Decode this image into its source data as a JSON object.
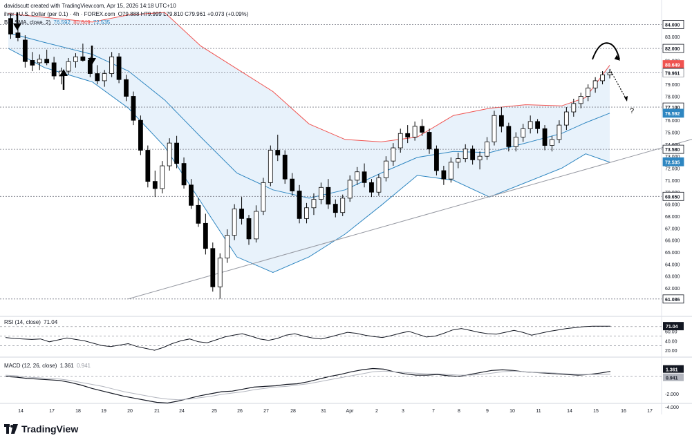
{
  "header": {
    "attribution": "davidscutt created with TradingView.com, Apr 15, 2026 14:18 UTC+10",
    "symbol": "ilver / U.S. Dollar (per 0.1) · 4h · FOREX.com",
    "ohlc": "O79.888 H79.999 L79.810 C79.961 +0.073 (+0.09%)",
    "bb_label": "BB, SMA, close, 2)",
    "bb_values": [
      "76.592",
      "80.649",
      "72.535"
    ],
    "rsi_label": "RSI (14, close)",
    "rsi_value": "71.04",
    "macd_label": "MACD (12, 26, close)",
    "macd_values": [
      "1.361",
      "0.941"
    ]
  },
  "logo": {
    "text": "TradingView",
    "icon": "tradingview-logo-icon"
  },
  "annotation": {
    "question": "?"
  },
  "colors": {
    "bullish": "#ffffff",
    "bearish": "#000000",
    "bb_upper": "#f05350",
    "bb_basis": "#2e86c1",
    "bb_fill": "#e8f2fb",
    "macd": "#131722",
    "signal": "#b2b5be",
    "level_line": "#787b86"
  },
  "chart_data": [
    {
      "type": "candlestick",
      "title": "",
      "x_tick_labels": [
        "14",
        "17",
        "18",
        "19",
        "20",
        "21",
        "24",
        "25",
        "26",
        "27",
        "28",
        "31",
        "Apr",
        "2",
        "3",
        "7",
        "8",
        "9",
        "10",
        "11",
        "14",
        "15",
        "16",
        "17"
      ],
      "y_ticks": [
        "83.000",
        "81.000",
        "79.000",
        "78.000",
        "77.000",
        "76.000",
        "75.000",
        "74.000",
        "73.000",
        "72.000",
        "71.000",
        "70.000",
        "69.000",
        "68.000",
        "67.000",
        "66.000",
        "65.000",
        "64.000",
        "63.000",
        "62.000"
      ],
      "ylim": [
        60.5,
        84.6
      ],
      "price_labels": [
        {
          "value": 84.0,
          "text": "84.000",
          "style": "level"
        },
        {
          "value": 82.0,
          "text": "82.000",
          "style": "level"
        },
        {
          "value": 80.649,
          "text": "80.649",
          "style": "upper"
        },
        {
          "value": 80.0,
          "text": "80.000",
          "style": "level"
        },
        {
          "value": 79.961,
          "text": "79.961",
          "style": "price"
        },
        {
          "value": 77.1,
          "text": "77.100",
          "style": "level"
        },
        {
          "value": 76.592,
          "text": "76.592",
          "style": "basis"
        },
        {
          "value": 73.58,
          "text": "73.580",
          "style": "level"
        },
        {
          "value": 72.535,
          "text": "72.535",
          "style": "lower"
        },
        {
          "value": 69.65,
          "text": "69.650",
          "style": "level"
        },
        {
          "value": 61.086,
          "text": "61.086",
          "style": "level"
        }
      ],
      "horizontal_levels": [
        84.0,
        82.0,
        80.0,
        77.1,
        73.58,
        69.65,
        61.086
      ],
      "trendline": {
        "from": [
          1,
          61.1
        ],
        "to": [
          6.1,
          75.6
        ]
      },
      "candles": [
        [
          0.02,
          84.5,
          84.9,
          82.8,
          83.2
        ],
        [
          0.08,
          83.3,
          84.2,
          82.6,
          82.9
        ],
        [
          0.14,
          82.7,
          83.1,
          80.4,
          80.9
        ],
        [
          0.2,
          81.0,
          81.7,
          80.1,
          80.6
        ],
        [
          0.26,
          80.8,
          81.5,
          80.2,
          81.1
        ],
        [
          0.32,
          81.1,
          81.9,
          80.6,
          80.8
        ],
        [
          0.38,
          80.8,
          81.3,
          79.4,
          79.7
        ],
        [
          0.44,
          79.7,
          80.4,
          79.0,
          80.1
        ],
        [
          0.5,
          80.1,
          81.2,
          79.8,
          80.9
        ],
        [
          0.56,
          80.9,
          81.6,
          80.4,
          81.3
        ],
        [
          0.62,
          81.3,
          82.4,
          80.9,
          81.0
        ],
        [
          0.68,
          81.0,
          81.3,
          79.6,
          79.9
        ],
        [
          0.74,
          79.9,
          80.6,
          79.0,
          79.3
        ],
        [
          0.8,
          79.3,
          80.2,
          78.8,
          79.9
        ],
        [
          0.86,
          79.9,
          81.7,
          79.6,
          81.3
        ],
        [
          0.92,
          81.3,
          81.6,
          79.1,
          79.4
        ],
        [
          0.98,
          79.4,
          79.8,
          77.6,
          78.0
        ],
        [
          1.04,
          78.0,
          78.4,
          75.6,
          76.0
        ],
        [
          1.1,
          76.0,
          76.4,
          73.1,
          73.5
        ],
        [
          1.16,
          73.5,
          73.9,
          70.4,
          70.9
        ],
        [
          1.22,
          70.9,
          71.8,
          69.6,
          70.3
        ],
        [
          1.28,
          70.3,
          72.6,
          69.9,
          72.2
        ],
        [
          1.34,
          72.2,
          74.5,
          71.8,
          74.1
        ],
        [
          1.4,
          74.1,
          74.7,
          72.0,
          72.4
        ],
        [
          1.46,
          72.4,
          72.9,
          70.3,
          70.6
        ],
        [
          1.52,
          70.6,
          71.1,
          68.6,
          68.9
        ],
        [
          1.58,
          68.9,
          69.5,
          67.1,
          67.4
        ],
        [
          1.64,
          67.4,
          68.2,
          64.8,
          65.3
        ],
        [
          1.7,
          65.3,
          65.8,
          61.7,
          62.1
        ],
        [
          1.76,
          62.1,
          64.9,
          61.1,
          64.5
        ],
        [
          1.82,
          64.5,
          66.9,
          64.1,
          66.4
        ],
        [
          1.88,
          66.4,
          69.0,
          66.0,
          68.6
        ],
        [
          1.94,
          68.6,
          69.6,
          67.3,
          67.8
        ],
        [
          2.0,
          67.8,
          68.1,
          65.6,
          66.1
        ],
        [
          2.06,
          66.1,
          68.9,
          65.8,
          68.4
        ],
        [
          2.12,
          68.4,
          71.2,
          68.1,
          70.8
        ],
        [
          2.18,
          70.8,
          73.9,
          70.5,
          73.5
        ],
        [
          2.24,
          73.5,
          74.8,
          72.6,
          73.1
        ],
        [
          2.3,
          73.1,
          73.5,
          70.7,
          71.1
        ],
        [
          2.36,
          71.1,
          71.6,
          69.7,
          70.1
        ],
        [
          2.42,
          70.1,
          70.6,
          67.4,
          67.8
        ],
        [
          2.48,
          67.8,
          69.1,
          67.4,
          68.7
        ],
        [
          2.54,
          68.7,
          69.9,
          68.1,
          69.4
        ],
        [
          2.6,
          69.4,
          70.8,
          69.0,
          70.4
        ],
        [
          2.66,
          70.4,
          71.1,
          68.6,
          69.0
        ],
        [
          2.72,
          69.0,
          69.4,
          67.9,
          68.3
        ],
        [
          2.78,
          68.3,
          69.8,
          68.0,
          69.5
        ],
        [
          2.84,
          69.5,
          71.4,
          69.2,
          71.0
        ],
        [
          2.9,
          71.0,
          72.1,
          70.6,
          71.7
        ],
        [
          2.96,
          71.7,
          72.4,
          70.4,
          70.8
        ],
        [
          3.02,
          70.8,
          71.1,
          69.6,
          70.0
        ],
        [
          3.08,
          70.0,
          71.5,
          69.7,
          71.2
        ],
        [
          3.14,
          71.2,
          73.0,
          70.9,
          72.6
        ],
        [
          3.2,
          72.6,
          74.1,
          72.2,
          73.7
        ],
        [
          3.26,
          73.7,
          75.3,
          73.3,
          74.9
        ],
        [
          3.32,
          74.9,
          75.6,
          74.1,
          74.6
        ],
        [
          3.38,
          74.6,
          75.9,
          74.3,
          75.5
        ],
        [
          3.44,
          75.5,
          76.1,
          74.7,
          75.0
        ],
        [
          3.5,
          75.0,
          75.3,
          73.2,
          73.6
        ],
        [
          3.56,
          73.6,
          73.9,
          71.4,
          71.8
        ],
        [
          3.62,
          71.8,
          72.2,
          70.6,
          71.1
        ],
        [
          3.68,
          71.1,
          72.9,
          70.8,
          72.5
        ],
        [
          3.74,
          72.5,
          73.3,
          72.0,
          72.8
        ],
        [
          3.8,
          72.8,
          74.0,
          72.5,
          73.6
        ],
        [
          3.86,
          73.6,
          73.9,
          72.3,
          72.7
        ],
        [
          3.92,
          72.7,
          73.4,
          71.9,
          73.0
        ],
        [
          3.98,
          73.0,
          74.6,
          72.7,
          74.2
        ],
        [
          4.04,
          74.2,
          76.8,
          73.9,
          76.4
        ],
        [
          4.1,
          76.4,
          77.1,
          75.0,
          75.5
        ],
        [
          4.16,
          75.5,
          75.8,
          73.4,
          73.8
        ],
        [
          4.22,
          73.8,
          75.0,
          73.4,
          74.6
        ],
        [
          4.28,
          74.6,
          75.7,
          74.2,
          75.3
        ],
        [
          4.34,
          75.3,
          76.4,
          74.9,
          75.9
        ],
        [
          4.4,
          75.9,
          76.1,
          74.9,
          75.3
        ],
        [
          4.46,
          75.3,
          75.6,
          73.5,
          73.9
        ],
        [
          4.52,
          73.9,
          74.7,
          73.4,
          74.4
        ],
        [
          4.58,
          74.4,
          76.0,
          74.1,
          75.6
        ],
        [
          4.64,
          75.6,
          77.1,
          75.2,
          76.7
        ],
        [
          4.7,
          76.7,
          77.8,
          76.3,
          77.4
        ],
        [
          4.76,
          77.4,
          78.3,
          77.0,
          78.0
        ],
        [
          4.82,
          78.0,
          79.0,
          77.6,
          78.7
        ],
        [
          4.88,
          78.7,
          79.6,
          78.3,
          79.3
        ],
        [
          4.94,
          79.3,
          80.1,
          79.0,
          79.8
        ],
        [
          5.0,
          79.8,
          80.2,
          79.5,
          79.96
        ]
      ],
      "bollinger": {
        "upper": [
          [
            0,
            84.9
          ],
          [
            0.3,
            84.6
          ],
          [
            0.7,
            84.2
          ],
          [
            1.0,
            84.8
          ],
          [
            1.3,
            85.0
          ],
          [
            1.6,
            82.2
          ],
          [
            1.9,
            80.3
          ],
          [
            2.2,
            78.4
          ],
          [
            2.5,
            75.7
          ],
          [
            2.8,
            74.4
          ],
          [
            3.1,
            74.2
          ],
          [
            3.4,
            74.6
          ],
          [
            3.7,
            76.4
          ],
          [
            4.0,
            77.0
          ],
          [
            4.3,
            77.3
          ],
          [
            4.6,
            77.2
          ],
          [
            4.8,
            77.9
          ],
          [
            5.0,
            80.6
          ]
        ],
        "basis": [
          [
            0,
            83.3
          ],
          [
            0.3,
            82.5
          ],
          [
            0.7,
            81.5
          ],
          [
            1.0,
            80.1
          ],
          [
            1.3,
            77.7
          ],
          [
            1.6,
            74.6
          ],
          [
            1.9,
            71.6
          ],
          [
            2.2,
            70.2
          ],
          [
            2.5,
            69.5
          ],
          [
            2.8,
            70.2
          ],
          [
            3.1,
            71.6
          ],
          [
            3.4,
            72.9
          ],
          [
            3.7,
            73.4
          ],
          [
            4.0,
            73.3
          ],
          [
            4.3,
            74.1
          ],
          [
            4.6,
            74.9
          ],
          [
            4.8,
            75.8
          ],
          [
            5.0,
            76.6
          ]
        ],
        "lower": [
          [
            0,
            82.0
          ],
          [
            0.3,
            80.4
          ],
          [
            0.7,
            79.2
          ],
          [
            1.0,
            77.0
          ],
          [
            1.3,
            73.8
          ],
          [
            1.6,
            69.2
          ],
          [
            1.9,
            64.6
          ],
          [
            2.2,
            63.3
          ],
          [
            2.5,
            64.6
          ],
          [
            2.8,
            66.5
          ],
          [
            3.1,
            68.9
          ],
          [
            3.4,
            71.4
          ],
          [
            3.7,
            71.0
          ],
          [
            4.0,
            69.6
          ],
          [
            4.3,
            70.8
          ],
          [
            4.6,
            72.0
          ],
          [
            4.8,
            73.2
          ],
          [
            5.0,
            72.5
          ]
        ]
      }
    },
    {
      "type": "line",
      "title": "RSI (14, close)",
      "y_ticks": [
        "60.00",
        "40.00",
        "20.00"
      ],
      "levels": [
        70,
        50,
        30
      ],
      "ylim": [
        10,
        80
      ],
      "series": [
        {
          "values": [
            47,
            45,
            44,
            43,
            44,
            38,
            42,
            46,
            43,
            40,
            35,
            30,
            28,
            31,
            34,
            28,
            24,
            20,
            26,
            34,
            40,
            44,
            38,
            36,
            42,
            48,
            52,
            55,
            50,
            44,
            41,
            45,
            52,
            55,
            50,
            46,
            44,
            48,
            53,
            58,
            56,
            52,
            49,
            47,
            51,
            56,
            60,
            54,
            48,
            50,
            56,
            63,
            66,
            62,
            58,
            55,
            54,
            58,
            62,
            58,
            52,
            56,
            60,
            63,
            66,
            68,
            70,
            71,
            71,
            71
          ]
        }
      ]
    },
    {
      "type": "line",
      "title": "MACD (12, 26, close)",
      "y_ticks": [
        "-2.000",
        "-4.000"
      ],
      "ylim": [
        -4.6,
        3.2
      ],
      "series": [
        {
          "values": [
            0.6,
            0.5,
            0.3,
            0.2,
            0.1,
            0.0,
            -0.3,
            -0.7,
            -1.2,
            -1.6,
            -2.0,
            -2.4,
            -2.7,
            -3.0,
            -3.3,
            -3.4,
            -3.1,
            -2.7,
            -2.3,
            -2.0,
            -1.7,
            -1.6,
            -1.3,
            -1.0,
            -0.9,
            -0.8,
            -0.6,
            -0.5,
            -0.2,
            0.2,
            0.6,
            0.9,
            1.3,
            1.6,
            1.8,
            1.7,
            1.3,
            1.0,
            0.8,
            0.8,
            0.9,
            0.7,
            0.6,
            0.9,
            1.2,
            1.5,
            1.6,
            1.5,
            1.3,
            1.2,
            1.1,
            1.0,
            0.9,
            0.8,
            0.9,
            1.1,
            1.36
          ]
        },
        {
          "values": [
            0.8,
            0.7,
            0.5,
            0.4,
            0.3,
            0.2,
            0.0,
            -0.3,
            -0.6,
            -0.9,
            -1.3,
            -1.7,
            -2.0,
            -2.3,
            -2.6,
            -2.8,
            -2.9,
            -2.8,
            -2.6,
            -2.4,
            -2.1,
            -1.9,
            -1.7,
            -1.4,
            -1.2,
            -1.0,
            -0.9,
            -0.7,
            -0.5,
            -0.2,
            0.1,
            0.4,
            0.7,
            1.0,
            1.3,
            1.4,
            1.3,
            1.2,
            1.1,
            1.0,
            1.0,
            0.9,
            0.8,
            0.8,
            0.9,
            1.1,
            1.3,
            1.4,
            1.3,
            1.2,
            1.2,
            1.1,
            1.0,
            0.9,
            0.9,
            0.9,
            0.94
          ]
        }
      ]
    }
  ]
}
